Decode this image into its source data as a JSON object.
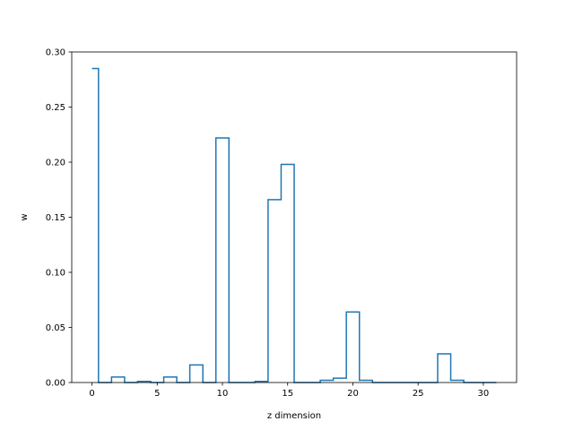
{
  "chart_data": {
    "type": "step",
    "title": "",
    "xlabel": "z dimension",
    "ylabel": "w",
    "xlim": [
      -1.55,
      32.55
    ],
    "ylim": [
      0.0,
      0.3
    ],
    "xticks": [
      0,
      5,
      10,
      15,
      20,
      25,
      30
    ],
    "yticks": [
      0.0,
      0.05,
      0.1,
      0.15,
      0.2,
      0.25,
      0.3
    ],
    "xtick_labels": [
      "0",
      "5",
      "10",
      "15",
      "20",
      "25",
      "30"
    ],
    "ytick_labels": [
      "0.00",
      "0.05",
      "0.10",
      "0.15",
      "0.20",
      "0.25",
      "0.30"
    ],
    "grid": false,
    "series": [
      {
        "color": "#1f77b4",
        "x": [
          0,
          1,
          2,
          3,
          4,
          5,
          6,
          7,
          8,
          9,
          10,
          11,
          12,
          13,
          14,
          15,
          16,
          17,
          18,
          19,
          20,
          21,
          22,
          23,
          24,
          25,
          26,
          27,
          28,
          29,
          30,
          31
        ],
        "values": [
          0.285,
          0.0,
          0.005,
          0.0,
          0.001,
          0.0,
          0.005,
          0.0,
          0.016,
          0.0,
          0.222,
          0.0,
          0.0,
          0.001,
          0.166,
          0.198,
          0.0,
          0.0,
          0.002,
          0.004,
          0.064,
          0.002,
          0.0,
          0.0,
          0.0,
          0.0,
          0.0,
          0.026,
          0.002,
          0.0,
          0.0,
          0.0
        ]
      }
    ]
  }
}
